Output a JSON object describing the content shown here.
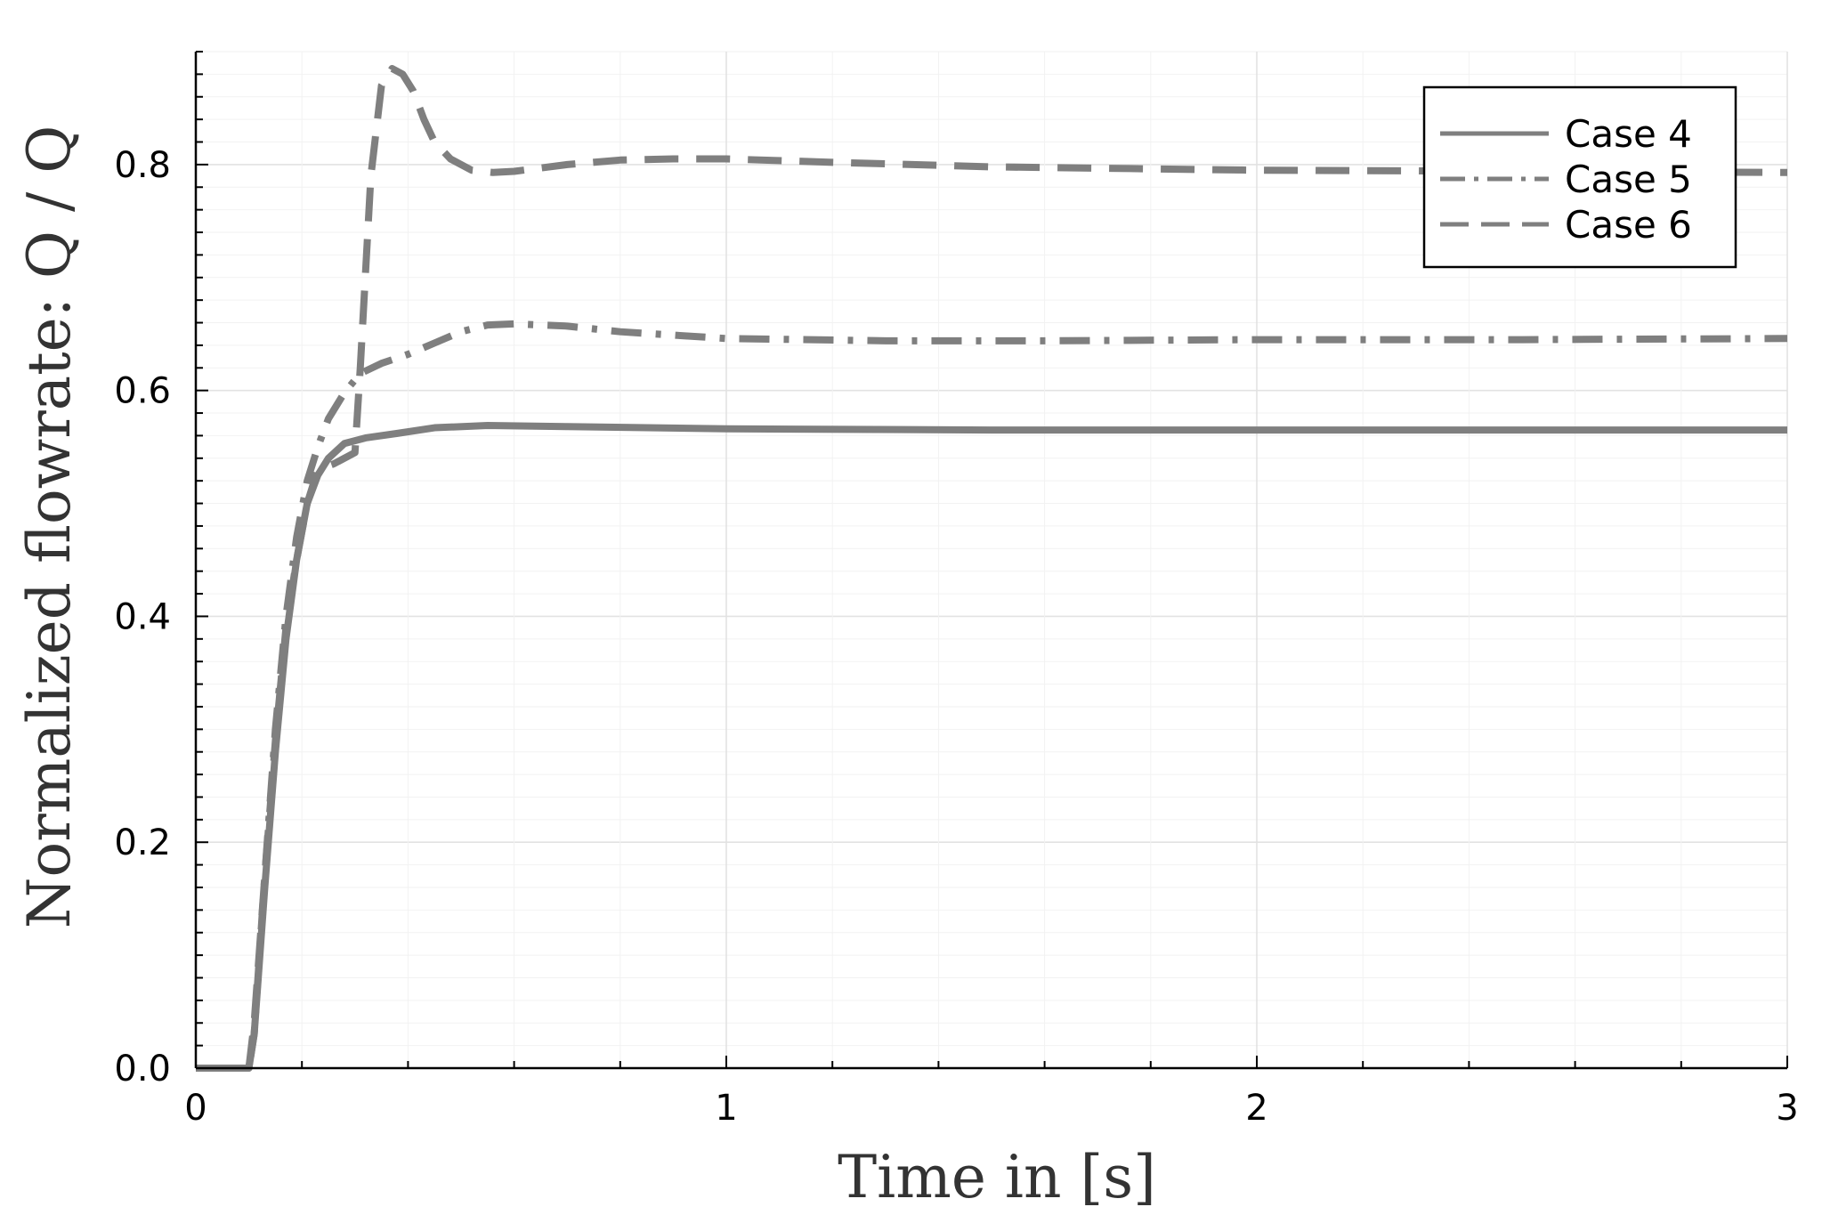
{
  "chart_data": {
    "type": "line",
    "xlabel": "Time in [s]",
    "ylabel": "Normalized flowrate: Q  / Q",
    "xlim": [
      0,
      3
    ],
    "ylim": [
      0,
      0.9
    ],
    "xticks": [
      0,
      1,
      2,
      3
    ],
    "xtick_labels": [
      "0",
      "1",
      "2",
      "3"
    ],
    "yticks": [
      0,
      0.2,
      0.4,
      0.6,
      0.8
    ],
    "ytick_labels": [
      "0.0",
      "0.2",
      "0.4",
      "0.6",
      "0.8"
    ],
    "grid": true,
    "legend_position": "top-right",
    "line_color": "#7f7f7f",
    "series": [
      {
        "name": "Case 4",
        "style": "solid",
        "x": [
          0,
          0.1,
          0.11,
          0.13,
          0.15,
          0.17,
          0.19,
          0.21,
          0.23,
          0.25,
          0.28,
          0.32,
          0.38,
          0.45,
          0.55,
          0.7,
          1.0,
          1.5,
          2.0,
          3.0
        ],
        "y": [
          0,
          0,
          0.03,
          0.16,
          0.28,
          0.38,
          0.45,
          0.5,
          0.525,
          0.54,
          0.553,
          0.558,
          0.562,
          0.567,
          0.569,
          0.568,
          0.566,
          0.565,
          0.565,
          0.565
        ]
      },
      {
        "name": "Case 5",
        "style": "dashdot",
        "x": [
          0,
          0.1,
          0.11,
          0.13,
          0.15,
          0.17,
          0.19,
          0.21,
          0.23,
          0.25,
          0.28,
          0.31,
          0.35,
          0.4,
          0.45,
          0.5,
          0.55,
          0.6,
          0.7,
          0.8,
          1.0,
          1.3,
          1.6,
          2.0,
          2.5,
          3.0
        ],
        "y": [
          0,
          0,
          0.03,
          0.17,
          0.3,
          0.4,
          0.47,
          0.52,
          0.55,
          0.575,
          0.598,
          0.615,
          0.624,
          0.632,
          0.642,
          0.652,
          0.658,
          0.659,
          0.657,
          0.652,
          0.646,
          0.644,
          0.644,
          0.645,
          0.645,
          0.646
        ]
      },
      {
        "name": "Case 6",
        "style": "dash",
        "x": [
          0,
          0.1,
          0.11,
          0.13,
          0.15,
          0.17,
          0.19,
          0.21,
          0.23,
          0.26,
          0.28,
          0.3,
          0.31,
          0.33,
          0.35,
          0.37,
          0.39,
          0.41,
          0.43,
          0.45,
          0.48,
          0.52,
          0.56,
          0.6,
          0.7,
          0.8,
          0.9,
          1.0,
          1.2,
          1.5,
          2.0,
          2.5,
          3.0
        ],
        "y": [
          0,
          0,
          0.04,
          0.17,
          0.29,
          0.39,
          0.45,
          0.5,
          0.53,
          0.535,
          0.54,
          0.545,
          0.62,
          0.79,
          0.87,
          0.885,
          0.88,
          0.865,
          0.84,
          0.82,
          0.805,
          0.795,
          0.793,
          0.794,
          0.8,
          0.804,
          0.805,
          0.805,
          0.802,
          0.798,
          0.795,
          0.794,
          0.793
        ]
      }
    ]
  }
}
